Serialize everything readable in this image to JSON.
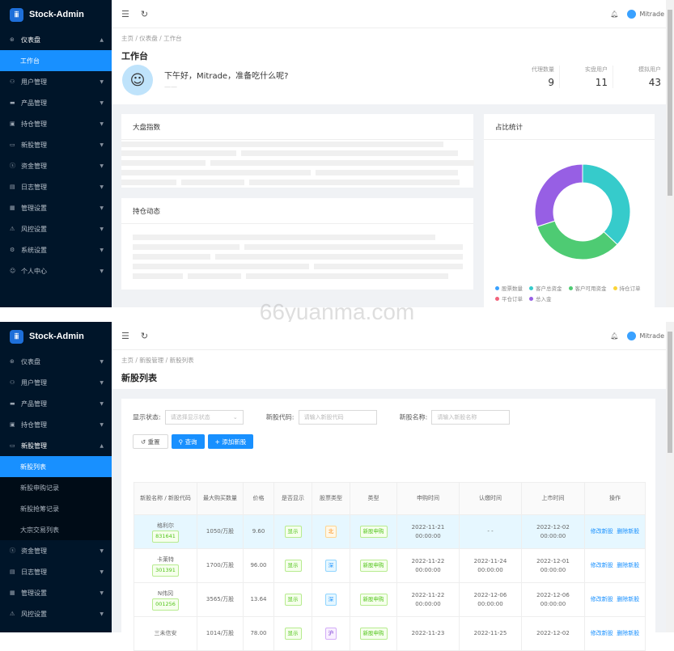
{
  "app": {
    "title": "Stock-Admin",
    "user": "Mitrade"
  },
  "watermark": "66yuanma.com",
  "dashboard": {
    "menu": [
      {
        "icon": "dashboard-icon",
        "label": "仪表盘",
        "open": true
      },
      {
        "icon": "users-icon",
        "label": "用户管理"
      },
      {
        "icon": "chart-icon",
        "label": "产品管理"
      },
      {
        "icon": "position-icon",
        "label": "持仓管理"
      },
      {
        "icon": "ipo-icon",
        "label": "新股管理"
      },
      {
        "icon": "money-icon",
        "label": "资金管理"
      },
      {
        "icon": "log-icon",
        "label": "日志管理"
      },
      {
        "icon": "admin-icon",
        "label": "管理设置"
      },
      {
        "icon": "warning-icon",
        "label": "风控设置"
      },
      {
        "icon": "gear-icon",
        "label": "系统设置"
      },
      {
        "icon": "user-icon",
        "label": "个人中心"
      }
    ],
    "submenu_active": "工作台",
    "breadcrumb": [
      "主页",
      "仪表盘",
      "工作台"
    ],
    "title": "工作台",
    "greeting": "下午好，Mitrade，准备吃什么呢?",
    "greeting_sub": "——",
    "stats": [
      {
        "label": "代理数量",
        "value": "9"
      },
      {
        "label": "实盘用户",
        "value": "11"
      },
      {
        "label": "模拟用户",
        "value": "43"
      }
    ],
    "card1": "大盘指数",
    "card2": "持仓动态",
    "card3": "占比统计",
    "chart_data": {
      "type": "pie",
      "donut": true,
      "legend_position": "bottom",
      "legend": [
        {
          "name": "股票数量",
          "color": "#3aa1ff"
        },
        {
          "name": "客户总资金",
          "color": "#36cbcb"
        },
        {
          "name": "客户可用资金",
          "color": "#4ecb73"
        },
        {
          "name": "持仓订单",
          "color": "#fbd437"
        },
        {
          "name": "平仓订单",
          "color": "#f2637b"
        },
        {
          "name": "总入金",
          "color": "#975fe4"
        }
      ],
      "slices": [
        {
          "name": "客户总资金",
          "value": 37,
          "color": "#36cbcb"
        },
        {
          "name": "客户可用资金",
          "value": 33,
          "color": "#4ecb73"
        },
        {
          "name": "总入金",
          "value": 30,
          "color": "#975fe4"
        }
      ]
    }
  },
  "ipo": {
    "menu_top": [
      {
        "icon": "dashboard-icon",
        "label": "仪表盘"
      },
      {
        "icon": "users-icon",
        "label": "用户管理"
      },
      {
        "icon": "chart-icon",
        "label": "产品管理"
      },
      {
        "icon": "position-icon",
        "label": "持仓管理"
      },
      {
        "icon": "ipo-icon",
        "label": "新股管理",
        "open": true
      }
    ],
    "submenu": [
      "新股列表",
      "新股申购记录",
      "新股抢筹记录",
      "大宗交易列表"
    ],
    "menu_bottom": [
      {
        "icon": "money-icon",
        "label": "资金管理"
      },
      {
        "icon": "log-icon",
        "label": "日志管理"
      },
      {
        "icon": "admin-icon",
        "label": "管理设置"
      },
      {
        "icon": "warning-icon",
        "label": "风控设置"
      }
    ],
    "breadcrumb": [
      "主页",
      "新股管理",
      "新股列表"
    ],
    "title": "新股列表",
    "filters": [
      {
        "label": "显示状态:",
        "placeholder": "请选择显示状态",
        "select": true
      },
      {
        "label": "新股代码:",
        "placeholder": "请输入新股代码"
      },
      {
        "label": "新股名称:",
        "placeholder": "请输入新股名称"
      }
    ],
    "buttons": {
      "reset": "重置",
      "search": "查询",
      "add": "添加新股"
    },
    "columns": [
      "新股名称 / 新股代码",
      "最大购买数量",
      "价格",
      "是否显示",
      "股票类型",
      "类型",
      "申购时间",
      "认缴时间",
      "上市时间",
      "操作"
    ],
    "rows": [
      {
        "name": "格利尔",
        "code": "831641",
        "max": "1050/万股",
        "price": "9.60",
        "show": "显示",
        "market": "北",
        "mc": "o",
        "type": "新股申购",
        "t1": [
          "2022-11-21",
          "00:00:00"
        ],
        "t2": [
          "- -",
          ""
        ],
        "t3": [
          "2022-12-02",
          "00:00:00"
        ]
      },
      {
        "name": "卡莱特",
        "code": "301391",
        "max": "1700/万股",
        "price": "96.00",
        "show": "显示",
        "market": "深",
        "mc": "b",
        "type": "新股申购",
        "t1": [
          "2022-11-22",
          "00:00:00"
        ],
        "t2": [
          "2022-11-24",
          "00:00:00"
        ],
        "t3": [
          "2022-12-01",
          "00:00:00"
        ]
      },
      {
        "name": "N伟冈",
        "code": "001256",
        "max": "3565/万股",
        "price": "13.64",
        "show": "显示",
        "market": "深",
        "mc": "b",
        "type": "新股申购",
        "t1": [
          "2022-11-22",
          "00:00:00"
        ],
        "t2": [
          "2022-12-06",
          "00:00:00"
        ],
        "t3": [
          "2022-12-06",
          "00:00:00"
        ]
      },
      {
        "name": "三未信安",
        "code": "",
        "max": "1014/万股",
        "price": "78.00",
        "show": "显示",
        "market": "沪",
        "mc": "p",
        "type": "新股申购",
        "t1": [
          "2022-11-23",
          ""
        ],
        "t2": [
          "2022-11-25",
          ""
        ],
        "t3": [
          "2022-12-02",
          ""
        ]
      }
    ],
    "ops": {
      "edit": "修改新股",
      "del": "删除新股"
    }
  }
}
